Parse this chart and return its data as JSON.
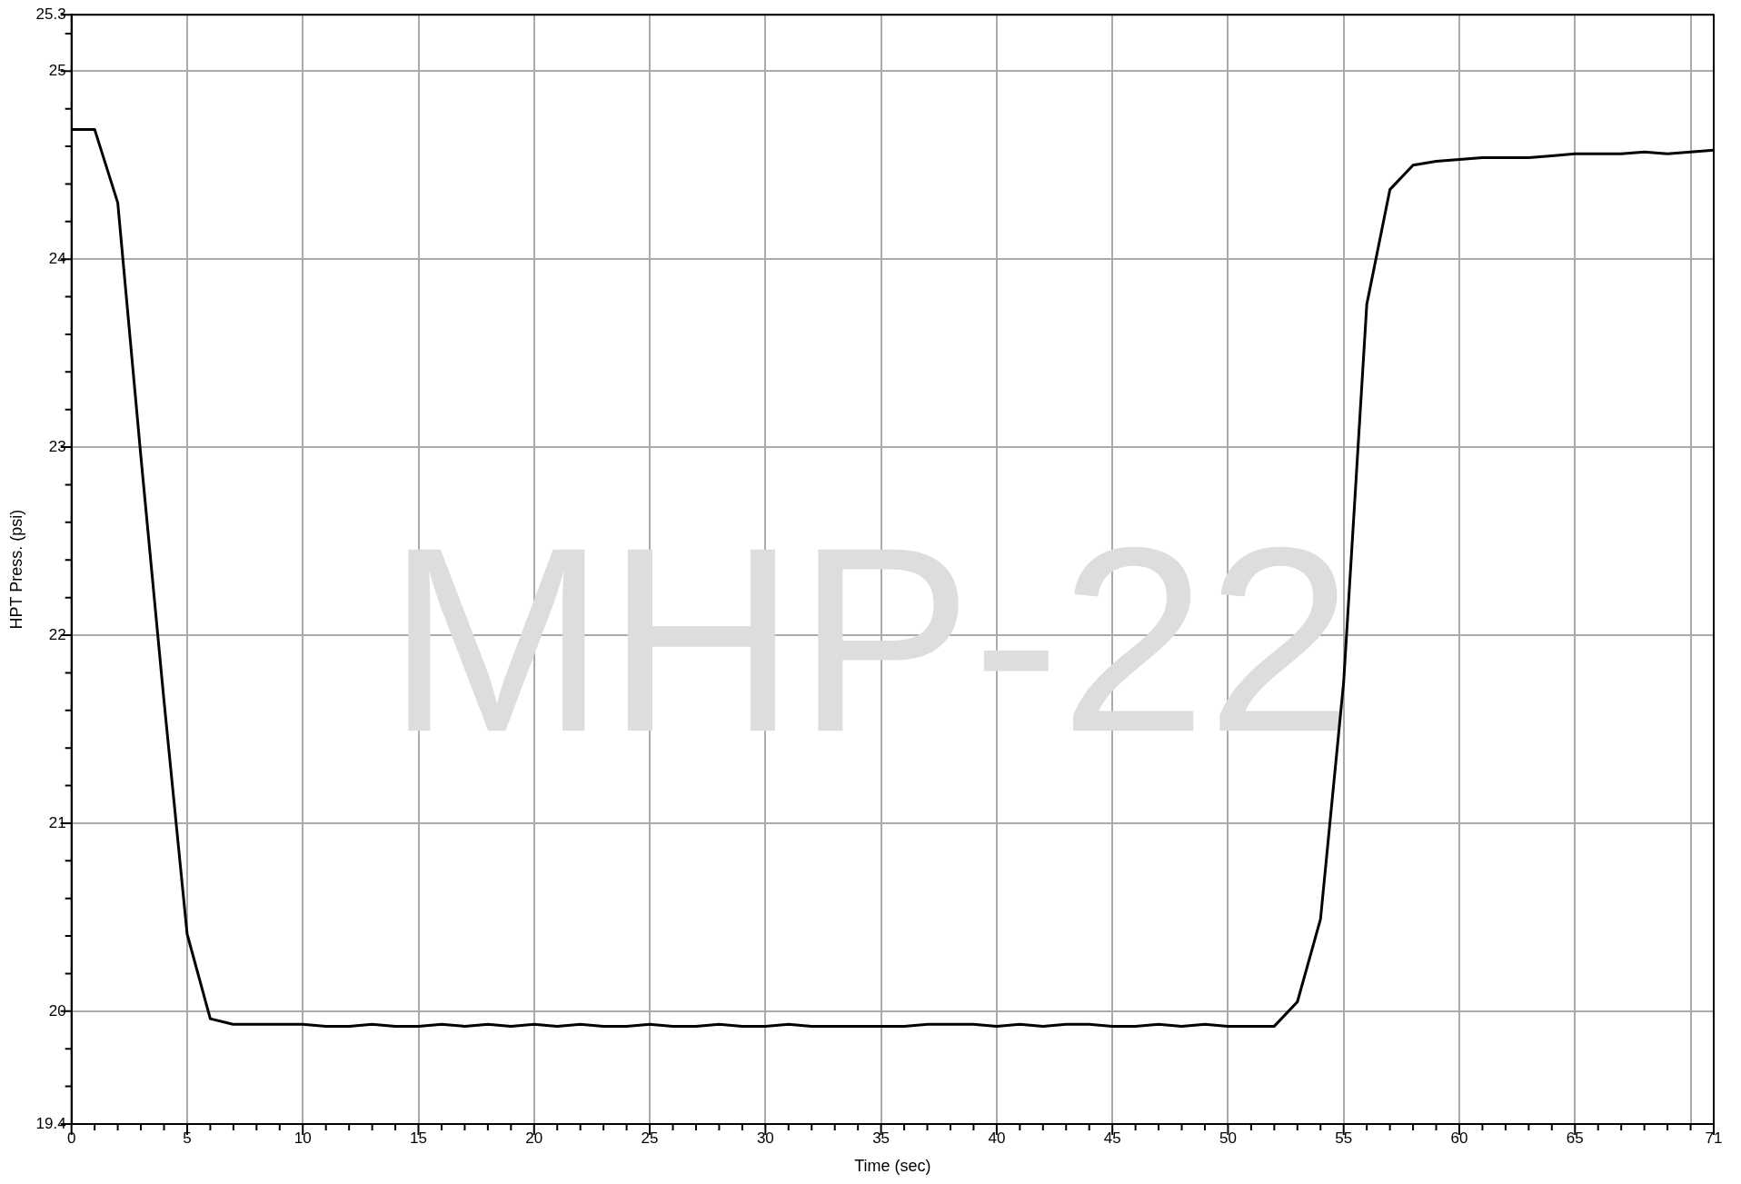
{
  "chart_data": {
    "type": "line",
    "xlabel": "Time (sec)",
    "ylabel": "HPT Press. (psi)",
    "annotations": [
      "MHP-22"
    ],
    "x": [
      0,
      1,
      2,
      3,
      4,
      5,
      6,
      7,
      8,
      9,
      10,
      11,
      12,
      13,
      14,
      15,
      16,
      17,
      18,
      19,
      20,
      21,
      22,
      23,
      24,
      25,
      26,
      27,
      28,
      29,
      30,
      31,
      32,
      33,
      34,
      35,
      36,
      37,
      38,
      39,
      40,
      41,
      42,
      43,
      44,
      45,
      46,
      47,
      48,
      49,
      50,
      51,
      52,
      53,
      54,
      55,
      56,
      57,
      58,
      59,
      60,
      61,
      62,
      63,
      64,
      65,
      66,
      67,
      68,
      69,
      70,
      71
    ],
    "series": [
      {
        "color": "#000000",
        "values": [
          24.69,
          24.69,
          24.3,
          22.95,
          21.65,
          20.41,
          19.96,
          19.93,
          19.93,
          19.93,
          19.93,
          19.92,
          19.92,
          19.93,
          19.92,
          19.92,
          19.93,
          19.92,
          19.93,
          19.92,
          19.93,
          19.92,
          19.93,
          19.92,
          19.92,
          19.93,
          19.92,
          19.92,
          19.93,
          19.92,
          19.92,
          19.93,
          19.92,
          19.92,
          19.92,
          19.92,
          19.92,
          19.93,
          19.93,
          19.93,
          19.92,
          19.93,
          19.92,
          19.93,
          19.93,
          19.92,
          19.92,
          19.93,
          19.92,
          19.93,
          19.92,
          19.92,
          19.92,
          20.05,
          20.49,
          21.75,
          23.76,
          24.37,
          24.5,
          24.52,
          24.53,
          24.54,
          24.54,
          24.54,
          24.55,
          24.56,
          24.56,
          24.56,
          24.57,
          24.56,
          24.57,
          24.58
        ]
      }
    ],
    "xlim": [
      0,
      71
    ],
    "ylim": [
      19.4,
      25.3
    ],
    "xticks": [
      0,
      {
        "value": 1,
        "label": null
      },
      {
        "value": 2,
        "label": null
      },
      {
        "value": 3,
        "label": null
      },
      {
        "value": 4,
        "label": null
      },
      5,
      {
        "value": 6,
        "label": null
      },
      {
        "value": 7,
        "label": null
      },
      {
        "value": 8,
        "label": null
      },
      {
        "value": 9,
        "label": null
      },
      10,
      {
        "value": 11,
        "label": null
      },
      {
        "value": 12,
        "label": null
      },
      {
        "value": 13,
        "label": null
      },
      {
        "value": 14,
        "label": null
      },
      15,
      {
        "value": 16,
        "label": null
      },
      {
        "value": 17,
        "label": null
      },
      {
        "value": 18,
        "label": null
      },
      {
        "value": 19,
        "label": null
      },
      20,
      {
        "value": 21,
        "label": null
      },
      {
        "value": 22,
        "label": null
      },
      {
        "value": 23,
        "label": null
      },
      {
        "value": 24,
        "label": null
      },
      25,
      {
        "value": 26,
        "label": null
      },
      {
        "value": 27,
        "label": null
      },
      {
        "value": 28,
        "label": null
      },
      {
        "value": 29,
        "label": null
      },
      30,
      {
        "value": 31,
        "label": null
      },
      {
        "value": 32,
        "label": null
      },
      {
        "value": 33,
        "label": null
      },
      {
        "value": 34,
        "label": null
      },
      35,
      {
        "value": 36,
        "label": null
      },
      {
        "value": 37,
        "label": null
      },
      {
        "value": 38,
        "label": null
      },
      {
        "value": 39,
        "label": null
      },
      40,
      {
        "value": 41,
        "label": null
      },
      {
        "value": 42,
        "label": null
      },
      {
        "value": 43,
        "label": null
      },
      {
        "value": 44,
        "label": null
      },
      45,
      {
        "value": 46,
        "label": null
      },
      {
        "value": 47,
        "label": null
      },
      {
        "value": 48,
        "label": null
      },
      {
        "value": 49,
        "label": null
      },
      50,
      {
        "value": 51,
        "label": null
      },
      {
        "value": 52,
        "label": null
      },
      {
        "value": 53,
        "label": null
      },
      {
        "value": 54,
        "label": null
      },
      55,
      {
        "value": 56,
        "label": null
      },
      {
        "value": 57,
        "label": null
      },
      {
        "value": 58,
        "label": null
      },
      {
        "value": 59,
        "label": null
      },
      60,
      {
        "value": 61,
        "label": null
      },
      {
        "value": 62,
        "label": null
      },
      {
        "value": 63,
        "label": null
      },
      {
        "value": 64,
        "label": null
      },
      65,
      {
        "value": 66,
        "label": null
      },
      {
        "value": 67,
        "label": null
      },
      {
        "value": 68,
        "label": null
      },
      {
        "value": 69,
        "label": null
      },
      {
        "value": 70,
        "label": null
      },
      71
    ],
    "yticks": [
      19.4,
      {
        "value": 19.6,
        "label": null
      },
      {
        "value": 19.8,
        "label": null
      },
      20,
      {
        "value": 20.2,
        "label": null
      },
      {
        "value": 20.4,
        "label": null
      },
      {
        "value": 20.6,
        "label": null
      },
      {
        "value": 20.8,
        "label": null
      },
      21,
      {
        "value": 21.2,
        "label": null
      },
      {
        "value": 21.4,
        "label": null
      },
      {
        "value": 21.6,
        "label": null
      },
      {
        "value": 21.8,
        "label": null
      },
      22,
      {
        "value": 22.2,
        "label": null
      },
      {
        "value": 22.4,
        "label": null
      },
      {
        "value": 22.6,
        "label": null
      },
      {
        "value": 22.8,
        "label": null
      },
      23,
      {
        "value": 23.2,
        "label": null
      },
      {
        "value": 23.4,
        "label": null
      },
      {
        "value": 23.6,
        "label": null
      },
      {
        "value": 23.8,
        "label": null
      },
      24,
      {
        "value": 24.2,
        "label": null
      },
      {
        "value": 24.4,
        "label": null
      },
      {
        "value": 24.6,
        "label": null
      },
      {
        "value": 24.8,
        "label": null
      },
      25,
      {
        "value": 25.2,
        "label": null
      },
      25.3
    ],
    "grid": true,
    "legend": false,
    "marker": "none",
    "line_style": "solid"
  }
}
